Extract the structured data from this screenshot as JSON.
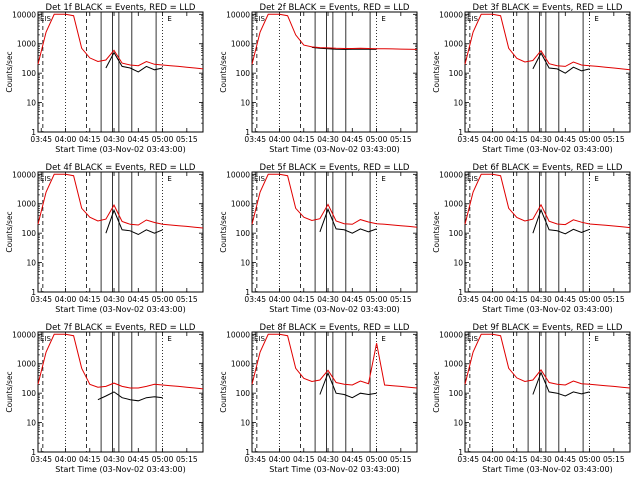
{
  "figure": {
    "xlabel": "Start Time (03-Nov-02 03:43:00)",
    "ylabel": "Counts/sec",
    "x_ticks": [
      "03:45",
      "04:00",
      "04:15",
      "04:30",
      "04:45",
      "05:00",
      "05:15"
    ],
    "y_ticks": [
      "1",
      "10",
      "100",
      "1000",
      "10000"
    ],
    "corner_marks": [
      "EIS",
      "E"
    ],
    "colors": {
      "events": "#000000",
      "lld": "#e00000",
      "axes": "#000000",
      "background": "#ffffff"
    }
  },
  "chart_data": [
    {
      "type": "line",
      "title": "Det 1f BLACK = Events, RED = LLD",
      "xlim": [
        "03:43",
        "05:25"
      ],
      "ylim": [
        1,
        12000
      ],
      "yscale": "log",
      "x": [
        "03:43",
        "03:48",
        "03:53",
        "04:00",
        "04:05",
        "04:10",
        "04:15",
        "04:20",
        "04:25",
        "04:30",
        "04:35",
        "04:40",
        "04:45",
        "04:50",
        "04:55",
        "05:00",
        "05:05",
        "05:10",
        "05:15",
        "05:20",
        "05:25"
      ],
      "series": [
        {
          "name": "BLACK = Events",
          "color": "#000000",
          "values": [
            null,
            null,
            null,
            null,
            null,
            null,
            null,
            null,
            150,
            500,
            170,
            150,
            110,
            170,
            130,
            150,
            null,
            null,
            null,
            null,
            null
          ]
        },
        {
          "name": "RED = LLD",
          "color": "#e00000",
          "values": [
            200,
            2500,
            10000,
            10000,
            9000,
            700,
            330,
            250,
            280,
            600,
            220,
            190,
            180,
            250,
            200,
            190,
            180,
            170,
            160,
            150,
            140
          ]
        }
      ]
    },
    {
      "type": "line",
      "title": "Det 2f BLACK = Events, RED = LLD",
      "xlim": [
        "03:43",
        "05:25"
      ],
      "ylim": [
        1,
        12000
      ],
      "yscale": "log",
      "x": [
        "03:43",
        "03:48",
        "03:53",
        "04:00",
        "04:05",
        "04:10",
        "04:15",
        "04:20",
        "04:25",
        "04:30",
        "04:35",
        "04:40",
        "04:45",
        "04:50",
        "04:55",
        "05:00",
        "05:05",
        "05:10",
        "05:15",
        "05:20",
        "05:25"
      ],
      "series": [
        {
          "name": "BLACK = Events",
          "color": "#000000",
          "values": [
            null,
            null,
            null,
            null,
            null,
            null,
            null,
            750,
            700,
            680,
            650,
            640,
            650,
            660,
            650,
            640,
            null,
            null,
            null,
            null,
            null
          ]
        },
        {
          "name": "RED = LLD",
          "color": "#e00000",
          "values": [
            200,
            2500,
            10000,
            10000,
            9000,
            2000,
            900,
            780,
            740,
            720,
            700,
            690,
            690,
            700,
            690,
            680,
            680,
            670,
            660,
            650,
            640
          ]
        }
      ]
    },
    {
      "type": "line",
      "title": "Det 3f BLACK = Events, RED = LLD",
      "xlim": [
        "03:43",
        "05:25"
      ],
      "ylim": [
        1,
        12000
      ],
      "yscale": "log",
      "x": [
        "03:43",
        "03:48",
        "03:53",
        "04:00",
        "04:05",
        "04:10",
        "04:15",
        "04:20",
        "04:25",
        "04:30",
        "04:35",
        "04:40",
        "04:45",
        "04:50",
        "04:55",
        "05:00",
        "05:05",
        "05:10",
        "05:15",
        "05:20",
        "05:25"
      ],
      "series": [
        {
          "name": "BLACK = Events",
          "color": "#000000",
          "values": [
            null,
            null,
            null,
            null,
            null,
            null,
            null,
            null,
            140,
            480,
            150,
            140,
            100,
            160,
            120,
            140,
            null,
            null,
            null,
            null,
            null
          ]
        },
        {
          "name": "RED = LLD",
          "color": "#e00000",
          "values": [
            200,
            2500,
            10000,
            10000,
            9000,
            700,
            320,
            240,
            270,
            580,
            210,
            180,
            170,
            240,
            190,
            180,
            170,
            160,
            150,
            140,
            130
          ]
        }
      ]
    },
    {
      "type": "line",
      "title": "Det 4f BLACK = Events, RED = LLD",
      "xlim": [
        "03:43",
        "05:25"
      ],
      "ylim": [
        1,
        12000
      ],
      "yscale": "log",
      "x": [
        "03:43",
        "03:48",
        "03:53",
        "04:00",
        "04:05",
        "04:10",
        "04:15",
        "04:20",
        "04:25",
        "04:30",
        "04:35",
        "04:40",
        "04:45",
        "04:50",
        "04:55",
        "05:00",
        "05:05",
        "05:10",
        "05:15",
        "05:20",
        "05:25"
      ],
      "series": [
        {
          "name": "BLACK = Events",
          "color": "#000000",
          "values": [
            null,
            null,
            null,
            null,
            null,
            null,
            null,
            null,
            100,
            600,
            130,
            120,
            90,
            130,
            100,
            130,
            null,
            null,
            null,
            null,
            null
          ]
        },
        {
          "name": "RED = LLD",
          "color": "#e00000",
          "values": [
            200,
            2500,
            10000,
            10000,
            9000,
            700,
            350,
            260,
            300,
            900,
            250,
            200,
            190,
            280,
            230,
            200,
            190,
            180,
            170,
            160,
            150
          ]
        }
      ]
    },
    {
      "type": "line",
      "title": "Det 5f BLACK = Events, RED = LLD",
      "xlim": [
        "03:43",
        "05:25"
      ],
      "ylim": [
        1,
        12000
      ],
      "yscale": "log",
      "x": [
        "03:43",
        "03:48",
        "03:53",
        "04:00",
        "04:05",
        "04:10",
        "04:15",
        "04:20",
        "04:25",
        "04:30",
        "04:35",
        "04:40",
        "04:45",
        "04:50",
        "04:55",
        "05:00",
        "05:05",
        "05:10",
        "05:15",
        "05:20",
        "05:25"
      ],
      "series": [
        {
          "name": "BLACK = Events",
          "color": "#000000",
          "values": [
            null,
            null,
            null,
            null,
            null,
            null,
            null,
            null,
            110,
            650,
            140,
            130,
            100,
            140,
            110,
            140,
            null,
            null,
            null,
            null,
            null
          ]
        },
        {
          "name": "RED = LLD",
          "color": "#e00000",
          "values": [
            200,
            2500,
            10000,
            10000,
            9000,
            700,
            350,
            270,
            310,
            950,
            260,
            210,
            200,
            290,
            240,
            210,
            200,
            190,
            180,
            170,
            160
          ]
        }
      ]
    },
    {
      "type": "line",
      "title": "Det 6f BLACK = Events, RED = LLD",
      "xlim": [
        "03:43",
        "05:25"
      ],
      "ylim": [
        1,
        12000
      ],
      "yscale": "log",
      "x": [
        "03:43",
        "03:48",
        "03:53",
        "04:00",
        "04:05",
        "04:10",
        "04:15",
        "04:20",
        "04:25",
        "04:30",
        "04:35",
        "04:40",
        "04:45",
        "04:50",
        "04:55",
        "05:00",
        "05:05",
        "05:10",
        "05:15",
        "05:20",
        "05:25"
      ],
      "series": [
        {
          "name": "BLACK = Events",
          "color": "#000000",
          "values": [
            null,
            null,
            null,
            null,
            null,
            null,
            null,
            null,
            100,
            620,
            130,
            120,
            95,
            135,
            105,
            135,
            null,
            null,
            null,
            null,
            null
          ]
        },
        {
          "name": "RED = LLD",
          "color": "#e00000",
          "values": [
            200,
            2500,
            10000,
            10000,
            9000,
            700,
            340,
            260,
            300,
            920,
            255,
            205,
            195,
            285,
            235,
            205,
            195,
            185,
            175,
            165,
            155
          ]
        }
      ]
    },
    {
      "type": "line",
      "title": "Det 7f BLACK = Events, RED = LLD",
      "xlim": [
        "03:43",
        "05:25"
      ],
      "ylim": [
        1,
        12000
      ],
      "yscale": "log",
      "x": [
        "03:43",
        "03:48",
        "03:53",
        "04:00",
        "04:05",
        "04:10",
        "04:15",
        "04:20",
        "04:25",
        "04:30",
        "04:35",
        "04:40",
        "04:45",
        "04:50",
        "04:55",
        "05:00",
        "05:05",
        "05:10",
        "05:15",
        "05:20",
        "05:25"
      ],
      "series": [
        {
          "name": "BLACK = Events",
          "color": "#000000",
          "values": [
            null,
            null,
            null,
            null,
            null,
            null,
            null,
            60,
            80,
            110,
            70,
            60,
            55,
            70,
            75,
            70,
            null,
            null,
            null,
            null,
            null
          ]
        },
        {
          "name": "RED = LLD",
          "color": "#e00000",
          "values": [
            200,
            2500,
            10000,
            10000,
            9000,
            700,
            200,
            160,
            170,
            220,
            170,
            150,
            150,
            170,
            200,
            190,
            180,
            170,
            160,
            150,
            140
          ]
        }
      ]
    },
    {
      "type": "line",
      "title": "Det 8f BLACK = Events, RED = LLD",
      "xlim": [
        "03:43",
        "05:25"
      ],
      "ylim": [
        1,
        12000
      ],
      "yscale": "log",
      "x": [
        "03:43",
        "03:48",
        "03:53",
        "04:00",
        "04:05",
        "04:10",
        "04:15",
        "04:20",
        "04:25",
        "04:30",
        "04:35",
        "04:40",
        "04:45",
        "04:50",
        "04:55",
        "05:00",
        "05:05",
        "05:10",
        "05:15",
        "05:20",
        "05:25"
      ],
      "series": [
        {
          "name": "BLACK = Events",
          "color": "#000000",
          "values": [
            null,
            null,
            null,
            null,
            null,
            null,
            null,
            null,
            90,
            480,
            100,
            90,
            70,
            100,
            90,
            100,
            null,
            null,
            null,
            null,
            null
          ]
        },
        {
          "name": "RED = LLD",
          "color": "#e00000",
          "values": [
            200,
            2500,
            10000,
            10000,
            9000,
            700,
            320,
            250,
            280,
            600,
            230,
            200,
            190,
            260,
            210,
            5000,
            190,
            180,
            170,
            160,
            150
          ]
        }
      ]
    },
    {
      "type": "line",
      "title": "Det 9f BLACK = Events, RED = LLD",
      "xlim": [
        "03:43",
        "05:25"
      ],
      "ylim": [
        1,
        12000
      ],
      "yscale": "log",
      "x": [
        "03:43",
        "03:48",
        "03:53",
        "04:00",
        "04:05",
        "04:10",
        "04:15",
        "04:20",
        "04:25",
        "04:30",
        "04:35",
        "04:40",
        "04:45",
        "04:50",
        "04:55",
        "05:00",
        "05:05",
        "05:10",
        "05:15",
        "05:20",
        "05:25"
      ],
      "series": [
        {
          "name": "BLACK = Events",
          "color": "#000000",
          "values": [
            null,
            null,
            null,
            null,
            null,
            null,
            null,
            null,
            90,
            500,
            110,
            100,
            80,
            110,
            95,
            110,
            null,
            null,
            null,
            null,
            null
          ]
        },
        {
          "name": "RED = LLD",
          "color": "#e00000",
          "values": [
            200,
            2500,
            10000,
            10000,
            9000,
            700,
            330,
            250,
            280,
            620,
            230,
            200,
            190,
            260,
            210,
            200,
            190,
            180,
            170,
            160,
            150
          ]
        }
      ]
    }
  ]
}
